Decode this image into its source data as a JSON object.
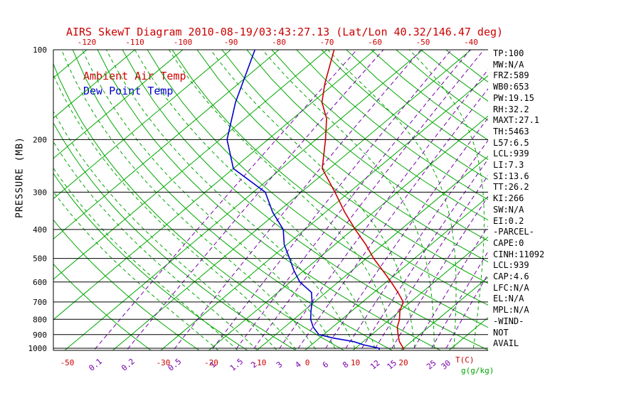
{
  "chart_data": {
    "type": "line",
    "subtype": "skew-t-log-p",
    "title": "AIRS SkewT Diagram 2010-08-19/03:43:27.13 (Lat/Lon 40.32/146.47 deg)",
    "legend": {
      "air_temp": "Ambient Air Temp",
      "dew_point": "Dew Point Temp"
    },
    "y_axis": {
      "label": "PRESSURE (MB)",
      "scale": "log",
      "ticks": [
        100,
        200,
        300,
        400,
        500,
        600,
        700,
        800,
        900,
        1000
      ],
      "range": [
        100,
        1050
      ]
    },
    "x_axis": {
      "unit_label": "T(C)",
      "skewed": true,
      "top_tick_labels": [
        -120,
        -110,
        -100,
        -90,
        -80,
        -70,
        -60,
        -50,
        -40
      ],
      "bottom_tick_labels": [
        -50,
        -30,
        -20,
        -10,
        0,
        10,
        20
      ]
    },
    "mixing_axis": {
      "unit_label": "g(g/kg)",
      "tick_labels": [
        "0.1",
        "0.2",
        "0.5",
        "1",
        "1.5",
        "2",
        "3",
        "4",
        "6",
        "8",
        "12",
        "15",
        "25",
        "30"
      ],
      "line_values": [
        0.1,
        0.2,
        0.5,
        1,
        1.5,
        2,
        3,
        4,
        6,
        8,
        10,
        12,
        15,
        20,
        25,
        30
      ]
    },
    "series": [
      {
        "name": "Ambient Air Temp",
        "color": "#cc0000",
        "points": [
          [
            100,
            -68.5
          ],
          [
            130,
            -62
          ],
          [
            150,
            -58
          ],
          [
            170,
            -53
          ],
          [
            200,
            -48
          ],
          [
            250,
            -41.5
          ],
          [
            300,
            -33
          ],
          [
            350,
            -26
          ],
          [
            400,
            -19.5
          ],
          [
            450,
            -13.5
          ],
          [
            500,
            -8.5
          ],
          [
            550,
            -3.5
          ],
          [
            600,
            1
          ],
          [
            650,
            5
          ],
          [
            700,
            8.5
          ],
          [
            750,
            10
          ],
          [
            800,
            12
          ],
          [
            850,
            13.5
          ],
          [
            900,
            15.5
          ],
          [
            950,
            17.5
          ],
          [
            1000,
            20
          ],
          [
            1012,
            20.4
          ]
        ]
      },
      {
        "name": "Dew Point Temp",
        "color": "#0000cc",
        "points": [
          [
            100,
            -85
          ],
          [
            150,
            -76
          ],
          [
            200,
            -68.5
          ],
          [
            250,
            -60
          ],
          [
            300,
            -47.5
          ],
          [
            350,
            -41
          ],
          [
            400,
            -34.5
          ],
          [
            450,
            -30.5
          ],
          [
            500,
            -26
          ],
          [
            550,
            -22
          ],
          [
            600,
            -18
          ],
          [
            650,
            -13
          ],
          [
            700,
            -10.5
          ],
          [
            750,
            -8.5
          ],
          [
            800,
            -6.5
          ],
          [
            850,
            -4
          ],
          [
            900,
            -1
          ],
          [
            925,
            3
          ],
          [
            950,
            8
          ],
          [
            975,
            11
          ],
          [
            1000,
            15
          ],
          [
            1012,
            15.3
          ]
        ]
      }
    ],
    "background": {
      "isotherms": {
        "color": "#00a800",
        "step_c": 10,
        "range_c": [
          -160,
          60
        ]
      },
      "dry_adiabats": {
        "color": "#00a800",
        "step_k": 10,
        "range_k": [
          240,
          440
        ]
      },
      "moist_adiabats": {
        "color": "#00a800",
        "dashed": true,
        "step_c": 4,
        "range_c": [
          -16,
          44
        ]
      },
      "mixing_ratio_lines": {
        "color": "#7700aa",
        "dashed": true
      }
    }
  },
  "panel": {
    "lines": [
      "TP:100",
      "MW:N/A",
      "FRZ:589",
      "WB0:653",
      "PW:19.15",
      "RH:32.2",
      "MAXT:27.1",
      "TH:5463",
      "L57:6.5",
      "LCL:939",
      "LI:7.3",
      "SI:13.6",
      "TT:26.2",
      "KI:266",
      "SW:N/A",
      "EI:0.2",
      "-PARCEL-",
      "CAPE:0",
      "CINH:11092",
      "LCL:939",
      "CAP:4.6",
      "LFC:N/A",
      "EL:N/A",
      "MPL:N/A",
      "-WIND-",
      "NOT",
      "AVAIL"
    ]
  },
  "colors": {
    "red": "#cc0000",
    "blue": "#0000cc",
    "green": "#00a800",
    "purple": "#7700aa",
    "black": "#000000"
  }
}
